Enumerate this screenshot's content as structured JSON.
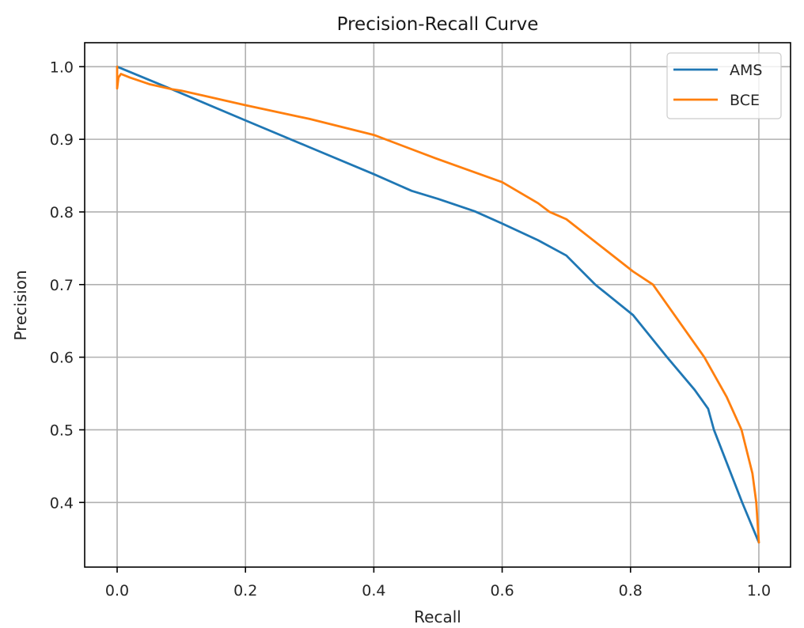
{
  "chart_data": {
    "type": "line",
    "title": "Precision-Recall Curve",
    "xlabel": "Recall",
    "ylabel": "Precision",
    "xlim": [
      -0.0506,
      1.0494
    ],
    "ylim": [
      0.311,
      1.033
    ],
    "xticks": [
      0.0,
      0.2,
      0.4,
      0.6,
      0.8,
      1.0
    ],
    "xtick_labels": [
      "0.0",
      "0.2",
      "0.4",
      "0.6",
      "0.8",
      "1.0"
    ],
    "yticks": [
      0.4,
      0.5,
      0.6,
      0.7,
      0.8,
      0.9,
      1.0
    ],
    "ytick_labels": [
      "0.4",
      "0.5",
      "0.6",
      "0.7",
      "0.8",
      "0.9",
      "1.0"
    ],
    "grid": true,
    "legend": {
      "position": "top-right"
    },
    "series": [
      {
        "name": "AMS",
        "color": "#1f77b4",
        "x": [
          0.0,
          0.085,
          0.2,
          0.3,
          0.4,
          0.459,
          0.5,
          0.557,
          0.6,
          0.656,
          0.7,
          0.745,
          0.804,
          0.857,
          0.9,
          0.921,
          0.93,
          0.974,
          1.0
        ],
        "y": [
          1.0,
          0.969,
          0.926,
          0.889,
          0.852,
          0.829,
          0.818,
          0.801,
          0.784,
          0.761,
          0.74,
          0.7,
          0.658,
          0.6,
          0.555,
          0.529,
          0.5,
          0.4,
          0.345
        ]
      },
      {
        "name": "BCE",
        "color": "#ff7f0e",
        "x": [
          0.0,
          0.0,
          0.002,
          0.006,
          0.02,
          0.05,
          0.085,
          0.1,
          0.2,
          0.3,
          0.4,
          0.496,
          0.6,
          0.656,
          0.674,
          0.7,
          0.804,
          0.835,
          0.915,
          0.95,
          0.973,
          0.99,
          0.996,
          1.0
        ],
        "y": [
          1.0,
          0.97,
          0.985,
          0.99,
          0.985,
          0.976,
          0.969,
          0.967,
          0.947,
          0.928,
          0.906,
          0.874,
          0.841,
          0.812,
          0.8,
          0.79,
          0.718,
          0.7,
          0.6,
          0.545,
          0.5,
          0.44,
          0.4,
          0.345
        ]
      }
    ]
  }
}
